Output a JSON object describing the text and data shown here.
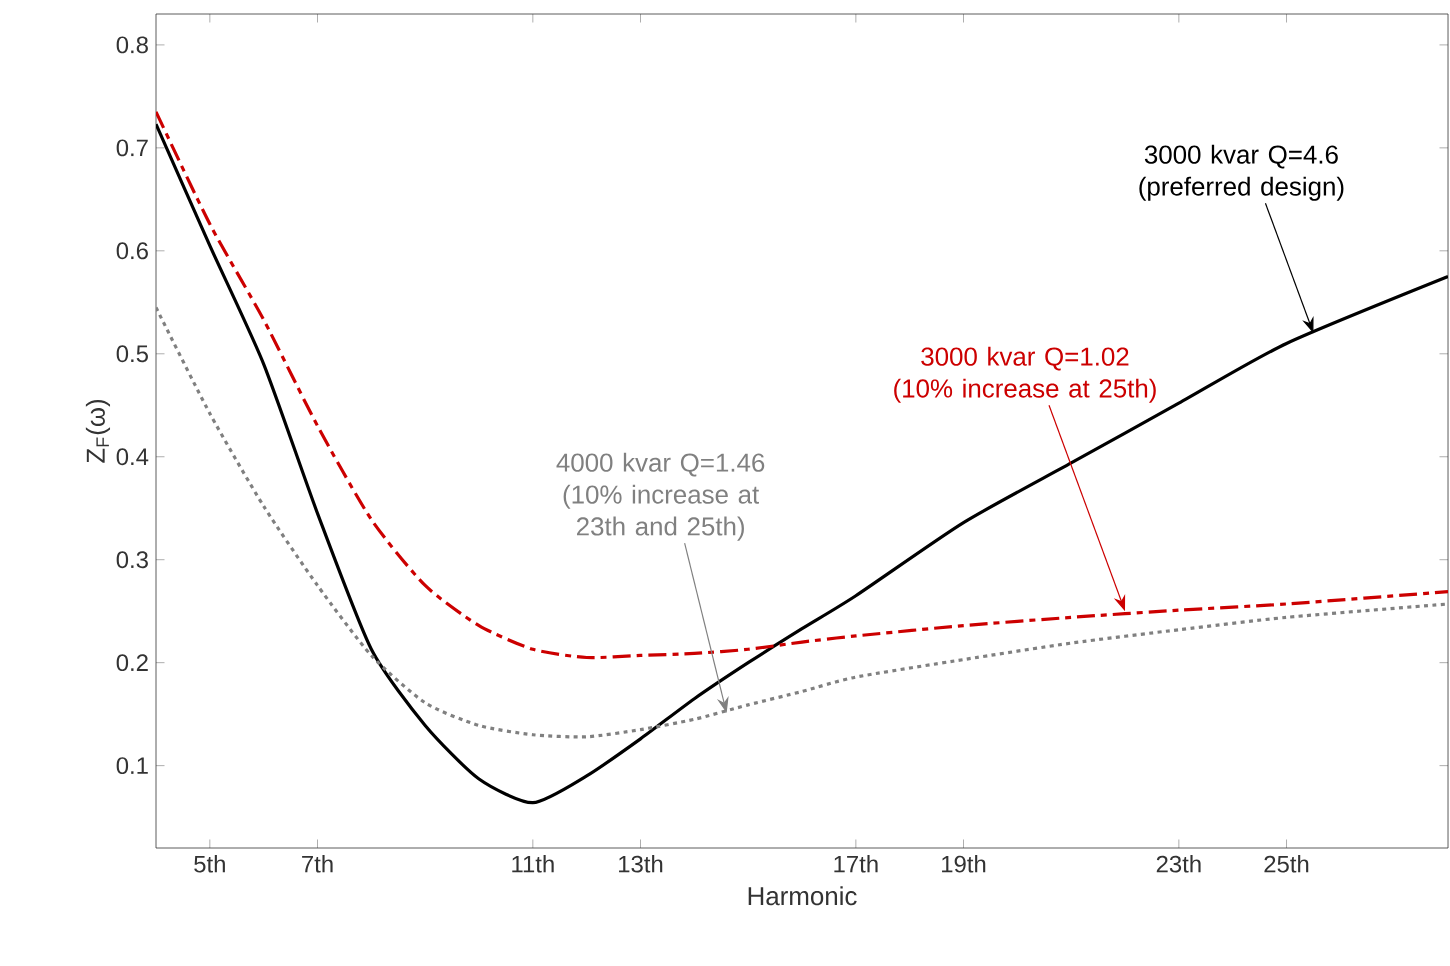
{
  "chart_data": {
    "type": "line",
    "xlabel": "Harmonic",
    "ylabel": "Z$_{F}$(ω)",
    "x": [
      4,
      5,
      6,
      7,
      8,
      9,
      10,
      11,
      12,
      13,
      14,
      15,
      16,
      17,
      19,
      21,
      23,
      25,
      28
    ],
    "series": [
      {
        "color": "#000000",
        "line_style": "solid",
        "values": [
          0.723,
          0.605,
          0.49,
          0.345,
          0.213,
          0.139,
          0.087,
          0.064,
          0.09,
          0.126,
          0.165,
          0.2,
          0.233,
          0.265,
          0.336,
          0.394,
          0.452,
          0.51,
          0.575
        ]
      },
      {
        "color": "#cc0000",
        "line_style": "dashed",
        "values": [
          0.735,
          0.626,
          0.533,
          0.43,
          0.339,
          0.275,
          0.236,
          0.213,
          0.205,
          0.207,
          0.209,
          0.213,
          0.22,
          0.226,
          0.236,
          0.244,
          0.251,
          0.257,
          0.269
        ]
      },
      {
        "color": "#808080",
        "line_style": "dotted",
        "values": [
          0.545,
          0.442,
          0.352,
          0.275,
          0.207,
          0.161,
          0.139,
          0.13,
          0.128,
          0.135,
          0.145,
          0.159,
          0.172,
          0.186,
          0.203,
          0.219,
          0.232,
          0.244,
          0.257
        ]
      }
    ],
    "annotations": [
      {
        "text": "3000 kvar Q=4.6 (preferred design)",
        "x": 25.5,
        "y": 0.52
      },
      {
        "text": "3000 kvar Q=1.02 (10% increase at 25th)",
        "x": 22,
        "y": 0.25
      },
      {
        "text": "4000 kvar Q=1.46 (10% increase at 23th and 25th)",
        "x": 14.6,
        "y": 0.151
      }
    ],
    "xlim": [
      4,
      28
    ],
    "ylim": [
      0.02,
      0.83
    ],
    "xticks": [
      {
        "value": 5,
        "label": "5th"
      },
      {
        "value": 7,
        "label": "7th"
      },
      {
        "value": 11,
        "label": "11th"
      },
      {
        "value": 13,
        "label": "13th"
      },
      {
        "value": 17,
        "label": "17th"
      },
      {
        "value": 19,
        "label": "19th"
      },
      {
        "value": 23,
        "label": "23th"
      },
      {
        "value": 25,
        "label": "25th"
      }
    ],
    "yticks": [
      0.1,
      0.2,
      0.3,
      0.4,
      0.5,
      0.6,
      0.7,
      0.8
    ],
    "grid": false
  }
}
